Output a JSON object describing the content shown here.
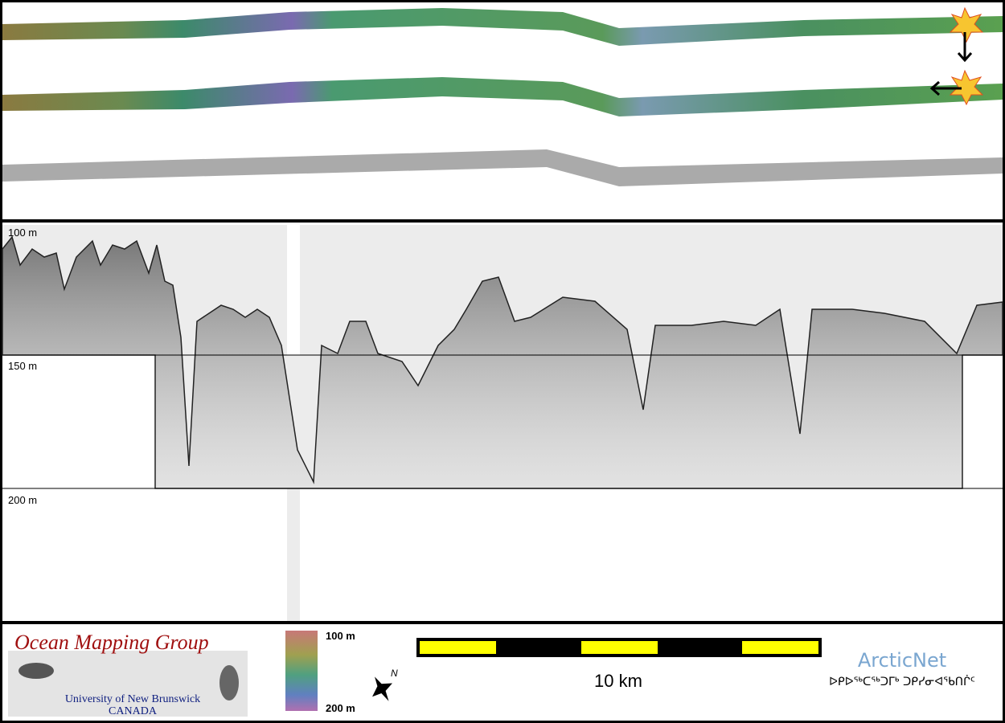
{
  "profile": {
    "depth_labels": [
      "100 m",
      "150 m",
      "200 m"
    ]
  },
  "footer": {
    "logo": {
      "title": "Ocean Mapping Group",
      "university": "University of New Brunswick",
      "country": "CANADA"
    },
    "colorbar": {
      "top_label": "100 m",
      "bottom_label": "200 m"
    },
    "north_arrow": "N",
    "scale_bar": "10 km",
    "partner": {
      "name": "ArcticNet",
      "syllabics": "ᐅᑭᐅᖅᑕᖅᑐᒥᒃ ᑐᑭᓯᓂᐊᖃᑎᒌᑦ"
    }
  }
}
